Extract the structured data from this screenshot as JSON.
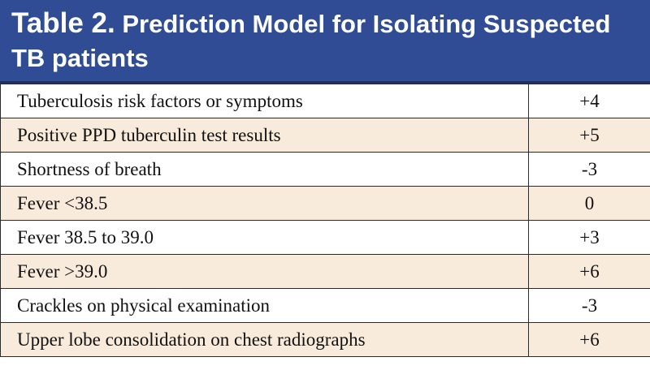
{
  "title": {
    "label": "Table 2.",
    "text": "Prediction Model for Isolating Suspected TB patients"
  },
  "table": {
    "rows": [
      [
        "Tuberculosis risk factors or symptoms",
        "+4"
      ],
      [
        "Positive PPD tuberculin test results",
        "+5"
      ],
      [
        "Shortness of breath",
        "-3"
      ],
      [
        "Fever <38.5",
        "0"
      ],
      [
        "Fever 38.5 to 39.0",
        "+3"
      ],
      [
        "Fever >39.0",
        "+6"
      ],
      [
        "Crackles on physical examination",
        "-3"
      ],
      [
        "Upper lobe consolidation on chest radiographs",
        "+6"
      ]
    ]
  }
}
